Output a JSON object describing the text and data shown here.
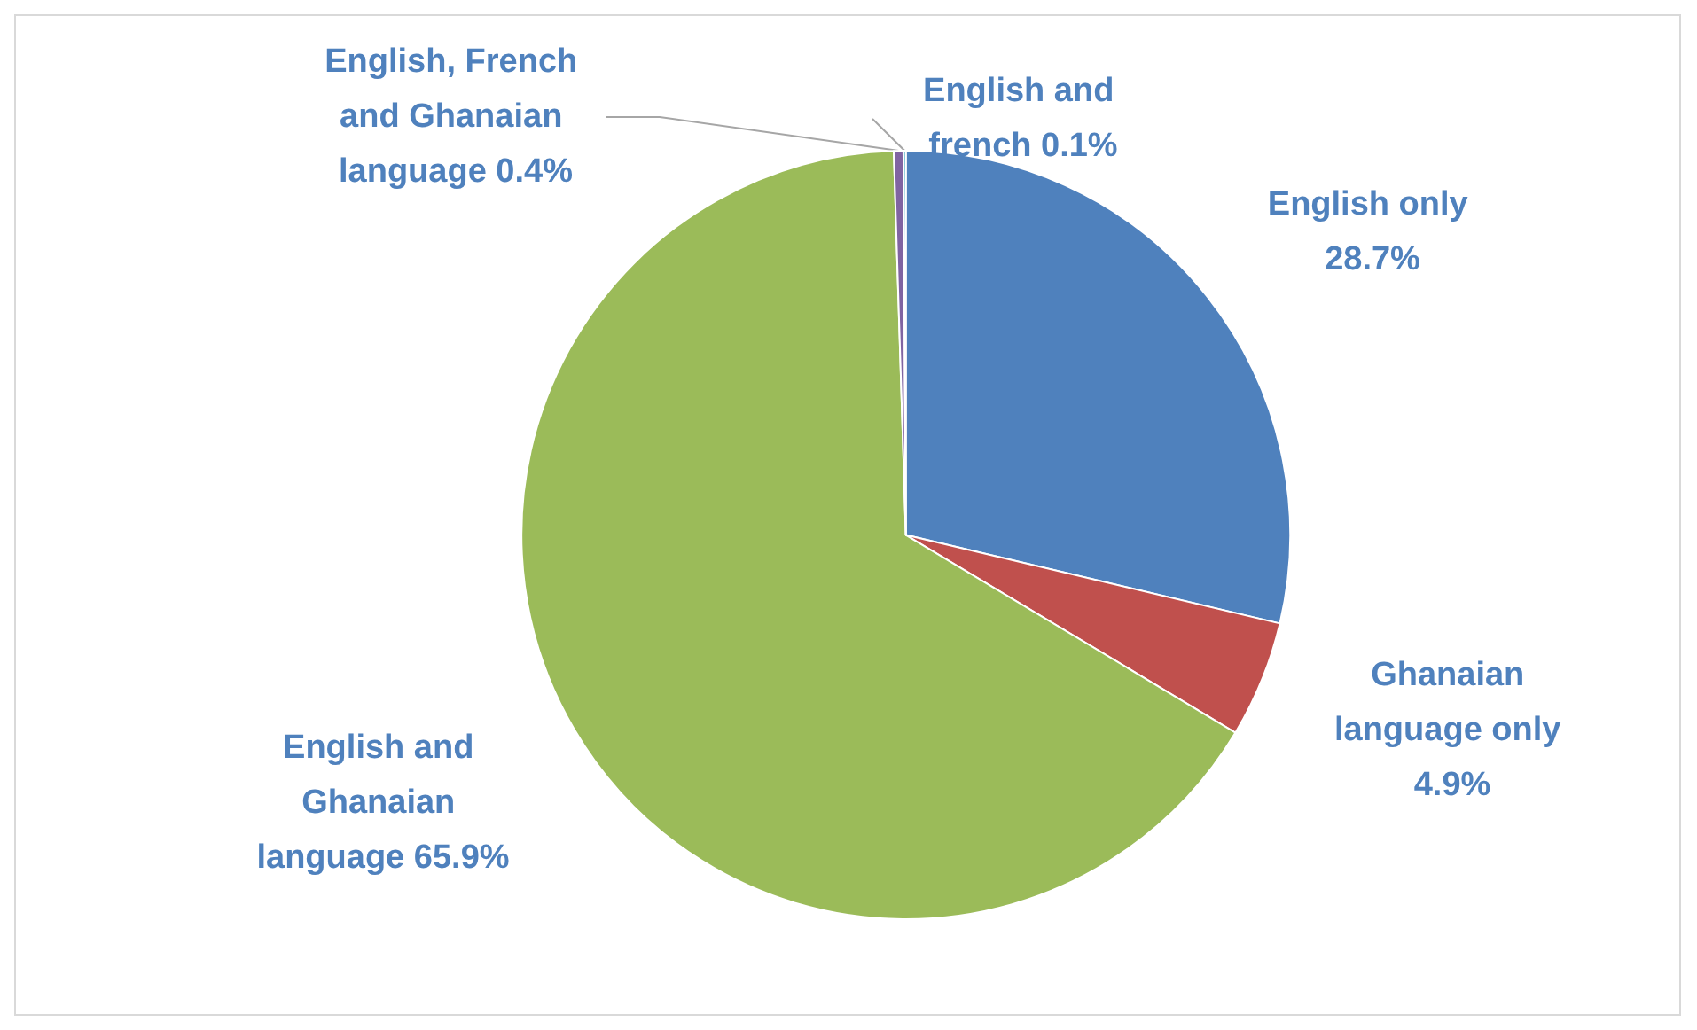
{
  "chart_data": {
    "type": "pie",
    "categories": [
      "English only",
      "Ghanaian language only",
      "English and Ghanaian language",
      "English, French and Ghanaian language",
      "English and french"
    ],
    "values": [
      28.7,
      4.9,
      65.9,
      0.4,
      0.1
    ],
    "colors": [
      "#4f81bd",
      "#c0504d",
      "#9bbb59",
      "#8064a2",
      "#4bacc6"
    ],
    "value_labels": [
      "28.7%",
      "4.9%",
      "65.9%",
      "0.4%",
      "0.1%"
    ],
    "legend": false
  }
}
